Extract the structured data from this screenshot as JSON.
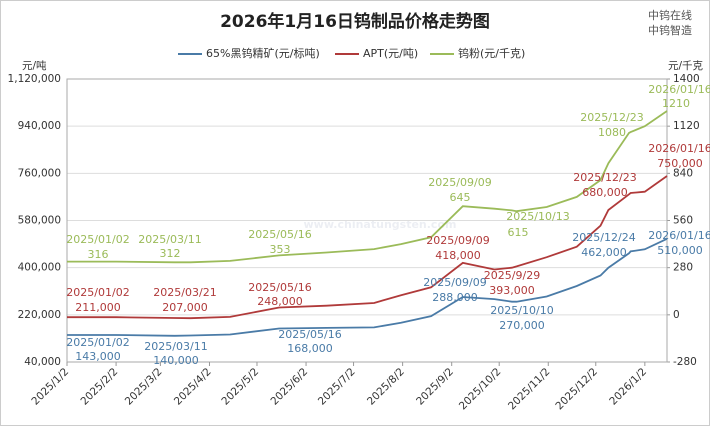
{
  "chart_data": {
    "type": "line",
    "title": "2026年1月16日钨制品价格走势图",
    "y_unit": "元/吨",
    "y2_unit": "元/千克",
    "brand": [
      "中钨在线",
      "中钨智造"
    ],
    "watermark": "www.chinatungsten.com",
    "xlim": [
      "2025/1/2",
      "2026/1/16"
    ],
    "xticks": [
      "2025/1/2",
      "2025/2/2",
      "2025/3/2",
      "2025/4/2",
      "2025/5/2",
      "2025/6/2",
      "2025/7/2",
      "2025/8/2",
      "2025/9/2",
      "2025/10/2",
      "2025/11/2",
      "2025/12/2",
      "2026/1/2"
    ],
    "ylim": [
      40000,
      1120000
    ],
    "yticks": [
      {
        "value": 40000,
        "label": "40,000"
      },
      {
        "value": 220000,
        "label": "220,000"
      },
      {
        "value": 400000,
        "label": "400,000"
      },
      {
        "value": 580000,
        "label": "580,000"
      },
      {
        "value": 760000,
        "label": "760,000"
      },
      {
        "value": 940000,
        "label": "940,000"
      },
      {
        "value": 1120000,
        "label": "1,120,000"
      }
    ],
    "y2lim": [
      -280,
      1400
    ],
    "y2ticks": [
      -280,
      0,
      280,
      560,
      840,
      1120,
      1400
    ],
    "grid": true,
    "x": [
      "2025/1/2",
      "2025/2/2",
      "2025/3/11",
      "2025/3/21",
      "2025/4/15",
      "2025/5/16",
      "2025/6/15",
      "2025/7/15",
      "2025/8/1",
      "2025/8/20",
      "2025/9/9",
      "2025/9/29",
      "2025/10/10",
      "2025/10/13",
      "2025/11/1",
      "2025/11/20",
      "2025/12/5",
      "2025/12/10",
      "2025/12/23",
      "2025/12/24",
      "2026/1/2",
      "2026/1/16"
    ],
    "series": [
      {
        "name": "65%黑钨精矿(元/标吨)",
        "color": "#4a7ba7",
        "values": [
          143000,
          143000,
          140000,
          141000,
          145000,
          168000,
          170000,
          172000,
          190000,
          215000,
          288000,
          280000,
          270000,
          270000,
          290000,
          330000,
          370000,
          400000,
          455000,
          462000,
          470000,
          510000
        ],
        "annotations": [
          {
            "date": "2025/01/02",
            "label": "143,000"
          },
          {
            "date": "2025/03/11",
            "label": "140,000"
          },
          {
            "date": "2025/05/16",
            "label": "168,000"
          },
          {
            "date": "2025/09/09",
            "label": "288,000"
          },
          {
            "date": "2025/10/10",
            "label": "270,000"
          },
          {
            "date": "2025/12/24",
            "label": "462,000"
          },
          {
            "date": "2026/01/16",
            "label": "510,000"
          }
        ]
      },
      {
        "name": "APT(元/吨)",
        "color": "#b03a3a",
        "values": [
          211000,
          211000,
          208000,
          207000,
          212000,
          248000,
          255000,
          265000,
          295000,
          325000,
          418000,
          393000,
          400000,
          405000,
          440000,
          480000,
          560000,
          620000,
          680000,
          685000,
          690000,
          750000
        ],
        "annotations": [
          {
            "date": "2025/01/02",
            "label": "211,000"
          },
          {
            "date": "2025/03/21",
            "label": "207,000"
          },
          {
            "date": "2025/05/16",
            "label": "248,000"
          },
          {
            "date": "2025/09/09",
            "label": "418,000"
          },
          {
            "date": "2025/9/29",
            "label": "393,000"
          },
          {
            "date": "2025/12/23",
            "label": "680,000"
          },
          {
            "date": "2026/01/16",
            "label": "750,000"
          }
        ]
      },
      {
        "name": "钨粉(元/千克)",
        "color": "#9bbb59",
        "axis": "y2",
        "values": [
          316,
          316,
          312,
          312,
          320,
          353,
          370,
          390,
          420,
          460,
          645,
          630,
          620,
          615,
          640,
          700,
          800,
          900,
          1080,
          1085,
          1120,
          1210
        ],
        "annotations": [
          {
            "date": "2025/01/02",
            "label": "316"
          },
          {
            "date": "2025/03/11",
            "label": "312"
          },
          {
            "date": "2025/05/16",
            "label": "353"
          },
          {
            "date": "2025/09/09",
            "label": "645"
          },
          {
            "date": "2025/10/13",
            "label": "615"
          },
          {
            "date": "2025/12/23",
            "label": "1080"
          },
          {
            "date": "2026/01/16",
            "label": "1210"
          }
        ]
      }
    ]
  }
}
